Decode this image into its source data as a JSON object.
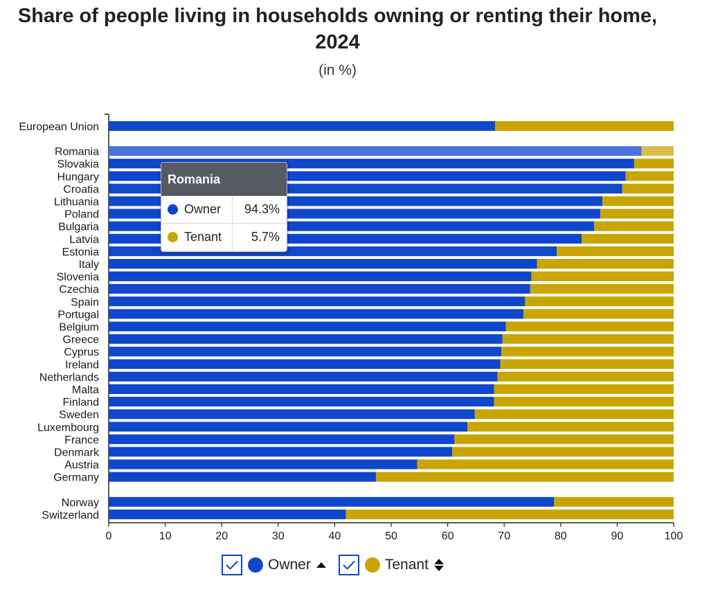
{
  "title": "Share of people living in households owning or renting their home, 2024",
  "subtitle": "(in %)",
  "colors": {
    "owner": "#0e47cb",
    "tenant": "#c9a502",
    "owner_highlight": "#4a73d8",
    "tenant_highlight": "#d9be4f"
  },
  "chart_data": {
    "type": "bar",
    "orientation": "horizontal",
    "stacked": true,
    "groups": [
      [
        "European Union"
      ],
      [
        "Romania",
        "Slovakia",
        "Hungary",
        "Croatia",
        "Lithuania",
        "Poland",
        "Bulgaria",
        "Latvia",
        "Estonia",
        "Italy",
        "Slovenia",
        "Czechia",
        "Spain",
        "Portugal",
        "Belgium",
        "Greece",
        "Cyprus",
        "Ireland",
        "Netherlands",
        "Malta",
        "Finland",
        "Sweden",
        "Luxembourg",
        "France",
        "Denmark",
        "Austria",
        "Germany"
      ],
      [
        "Norway",
        "Switzerland"
      ]
    ],
    "categories": [
      "European Union",
      "Romania",
      "Slovakia",
      "Hungary",
      "Croatia",
      "Lithuania",
      "Poland",
      "Bulgaria",
      "Latvia",
      "Estonia",
      "Italy",
      "Slovenia",
      "Czechia",
      "Spain",
      "Portugal",
      "Belgium",
      "Greece",
      "Cyprus",
      "Ireland",
      "Netherlands",
      "Malta",
      "Finland",
      "Sweden",
      "Luxembourg",
      "France",
      "Denmark",
      "Austria",
      "Germany",
      "Norway",
      "Switzerland"
    ],
    "series": [
      {
        "name": "Owner",
        "values": [
          68.4,
          94.3,
          93.0,
          91.5,
          90.9,
          87.4,
          87.0,
          85.9,
          83.7,
          79.3,
          75.8,
          74.8,
          74.6,
          73.7,
          73.4,
          70.3,
          69.7,
          69.5,
          69.3,
          68.8,
          68.2,
          68.2,
          64.8,
          63.5,
          61.2,
          60.8,
          54.6,
          47.3,
          78.8,
          42.0
        ]
      },
      {
        "name": "Tenant",
        "values": [
          31.6,
          5.7,
          7.0,
          8.5,
          9.1,
          12.6,
          13.0,
          14.1,
          16.3,
          20.7,
          24.2,
          25.2,
          25.4,
          26.3,
          26.6,
          29.7,
          30.3,
          30.5,
          30.7,
          31.2,
          31.8,
          31.8,
          35.2,
          36.5,
          38.8,
          39.2,
          45.4,
          52.7,
          21.2,
          58.0
        ]
      }
    ],
    "xlim": [
      0,
      100
    ],
    "xticks": [
      "0",
      "10",
      "20",
      "30",
      "40",
      "50",
      "60",
      "70",
      "80",
      "90",
      "100"
    ],
    "highlighted": "Romania"
  },
  "tooltip": {
    "title": "Romania",
    "rows": [
      {
        "label": "Owner",
        "value": "94.3%"
      },
      {
        "label": "Tenant",
        "value": "5.7%"
      }
    ]
  },
  "legend": {
    "items": [
      {
        "label": "Owner",
        "sort_icon": "sort-ascending-icon",
        "check_icon": "checkmark-icon"
      },
      {
        "label": "Tenant",
        "sort_icon": "sort-both-icon",
        "check_icon": "checkmark-icon"
      }
    ]
  }
}
